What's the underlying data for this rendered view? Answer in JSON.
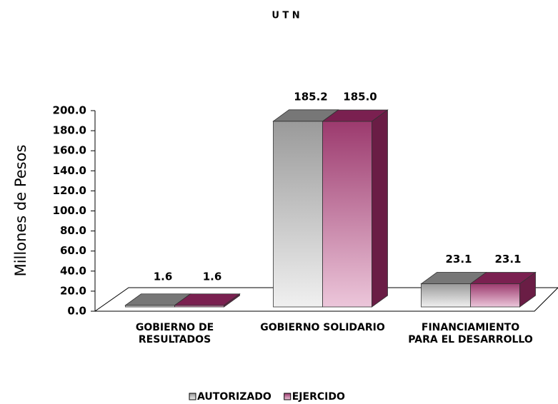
{
  "chart_data": {
    "type": "bar3d",
    "title": "U T N",
    "ylabel": "Millones de Pesos",
    "categories": [
      "GOBIERNO DE RESULTADOS",
      "GOBIERNO SOLIDARIO",
      "FINANCIAMIENTO PARA EL DESARROLLO"
    ],
    "series": [
      {
        "name": "AUTORIZADO",
        "color": "#9a9a9a",
        "values": [
          1.6,
          185.2,
          23.1
        ],
        "value_labels": [
          "1.6",
          "185.2",
          "23.1"
        ]
      },
      {
        "name": "EJERCIDO",
        "color": "#9c3a6e",
        "values": [
          1.6,
          185.0,
          23.1
        ],
        "value_labels": [
          "1.6",
          "185.0",
          "23.1"
        ]
      }
    ],
    "ylim": [
      0,
      200
    ],
    "yticks": [
      {
        "value": 0,
        "label": "0.0"
      },
      {
        "value": 20,
        "label": "20.0"
      },
      {
        "value": 40,
        "label": "40.0"
      },
      {
        "value": 60,
        "label": "60.0"
      },
      {
        "value": 80,
        "label": "80.0"
      },
      {
        "value": 100,
        "label": "100.0"
      },
      {
        "value": 120,
        "label": "120.0"
      },
      {
        "value": 140,
        "label": "140.0"
      },
      {
        "value": 160,
        "label": "160.0"
      },
      {
        "value": 180,
        "label": "180.0"
      },
      {
        "value": 200,
        "label": "200.0"
      }
    ],
    "legend": "bottom"
  }
}
